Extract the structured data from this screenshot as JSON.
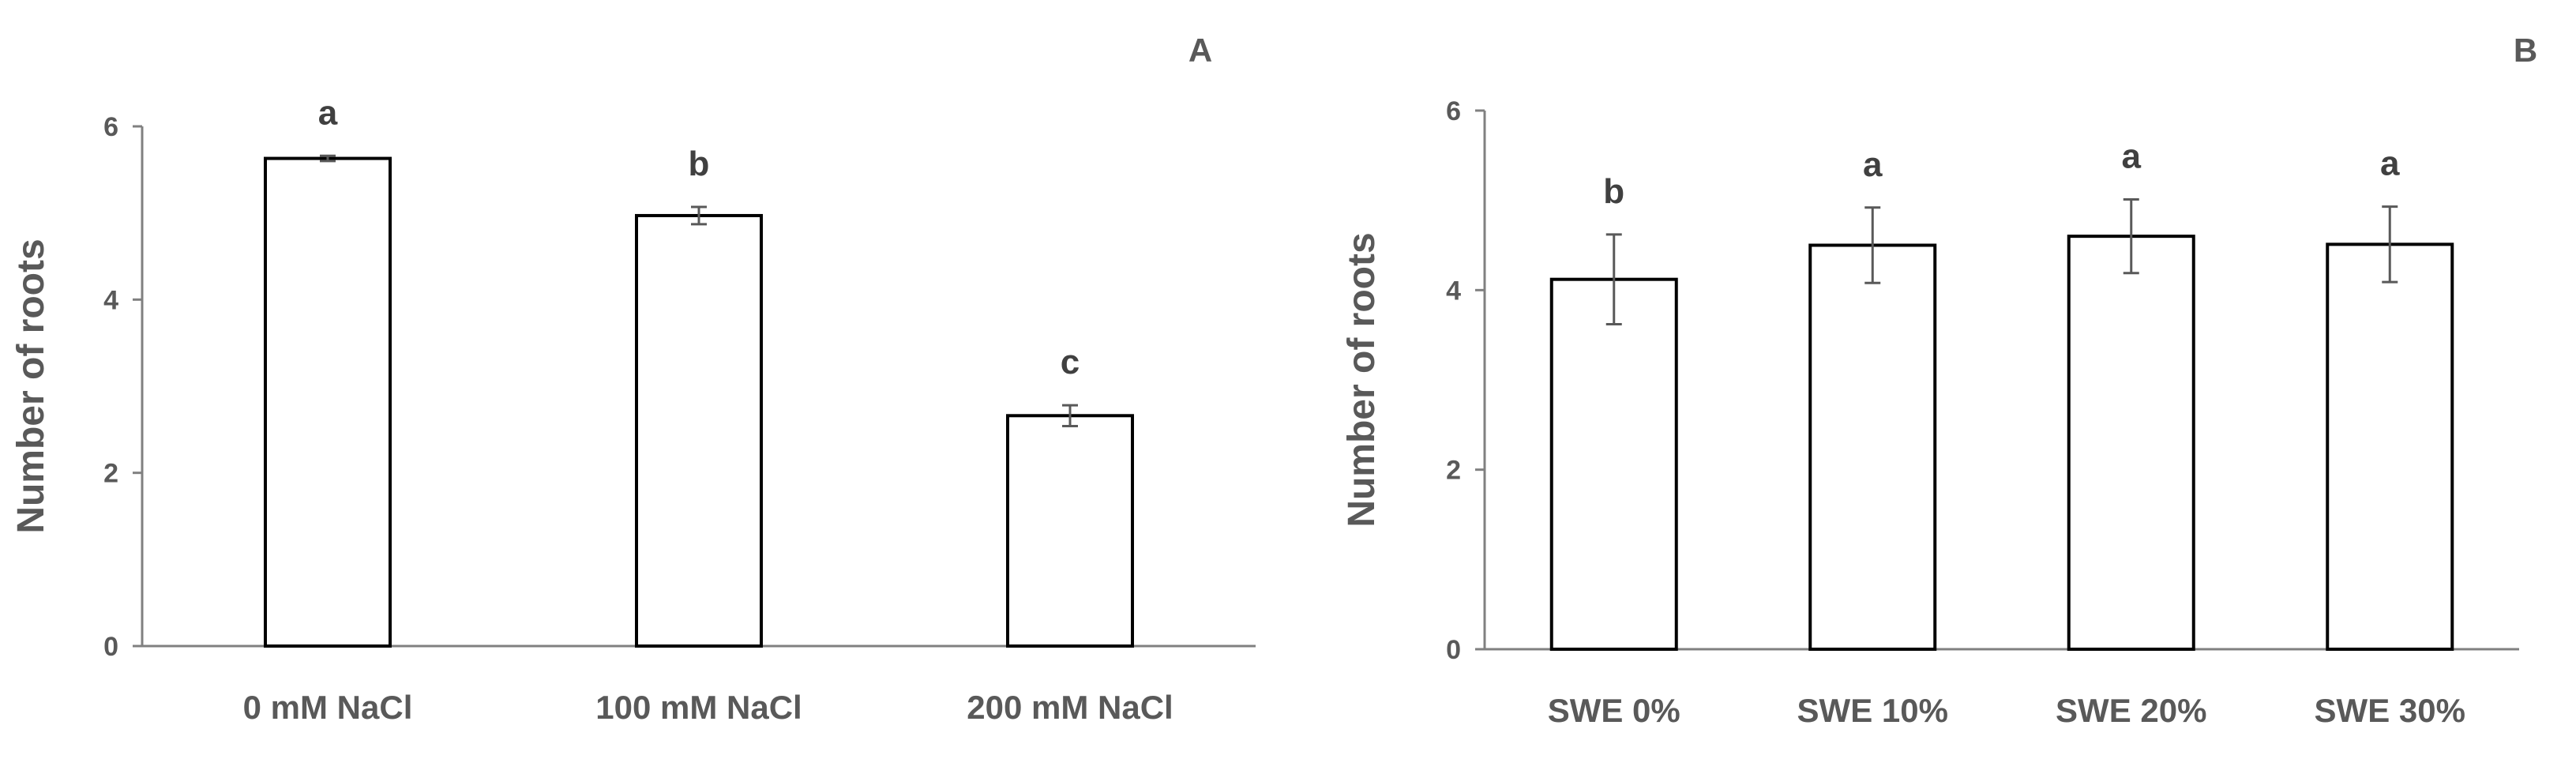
{
  "chart_data": [
    {
      "type": "bar",
      "panel": "A",
      "categories": [
        "0 mM NaCl",
        "100 mM NaCl",
        "200 mM NaCl"
      ],
      "values": [
        5.63,
        4.97,
        2.66
      ],
      "errors": [
        0.03,
        0.1,
        0.12
      ],
      "significance": [
        "a",
        "b",
        "c"
      ],
      "title": "",
      "xlabel": "",
      "ylabel": "Number of roots",
      "ylim": [
        0,
        6
      ],
      "yticks": [
        0,
        2,
        4,
        6
      ],
      "grid": false
    },
    {
      "type": "bar",
      "panel": "B",
      "categories": [
        "SWE 0%",
        "SWE 10%",
        "SWE 20%",
        "SWE 30%"
      ],
      "values": [
        4.12,
        4.5,
        4.6,
        4.51
      ],
      "errors": [
        0.5,
        0.42,
        0.41,
        0.42
      ],
      "significance": [
        "b",
        "a",
        "a",
        "a"
      ],
      "title": "",
      "xlabel": "",
      "ylabel": "Number of roots",
      "ylim": [
        0,
        6
      ],
      "yticks": [
        0,
        2,
        4,
        6
      ],
      "grid": false
    }
  ],
  "colors": {
    "axis": "#808080",
    "bar_fill": "#ffffff",
    "bar_stroke": "#000000",
    "error_bar": "#595959",
    "text": "#595959",
    "sig_text": "#404040"
  }
}
